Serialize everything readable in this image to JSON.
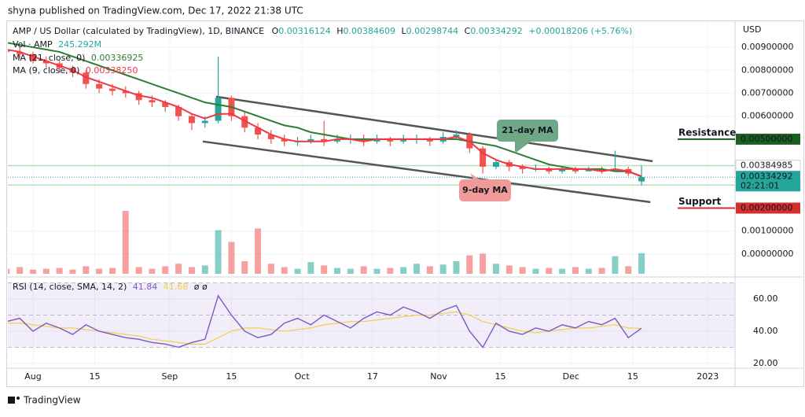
{
  "header": {
    "publisher": "shyna published on TradingView.com, Dec 17, 2022 21:38 UTC",
    "brand": "TradingView"
  },
  "chart_data": {
    "type": "candlestick",
    "title": "AMP / US Dollar (calculated by TradingView), 1D, BINANCE",
    "currency": "USD",
    "ohlc_prefixes": [
      "O",
      "H",
      "L",
      "C"
    ],
    "change_label": "+0.00018206 (+5.76%)",
    "countdown": "02:21:01",
    "x": [
      -6,
      -3,
      0,
      3,
      6,
      9,
      12,
      15,
      18,
      21,
      24,
      27,
      30,
      33,
      36,
      39,
      42,
      45,
      48,
      51,
      54,
      57,
      60,
      63,
      66,
      69,
      72,
      75,
      78,
      81,
      84,
      87,
      90,
      93,
      96,
      99,
      102,
      105,
      108,
      111,
      114,
      117,
      120,
      123,
      126,
      129,
      132,
      135,
      138
    ],
    "xlim": [
      -5.7,
      159.2
    ],
    "xticks": [
      {
        "value": 0,
        "label": "Aug"
      },
      {
        "value": 14,
        "label": "15"
      },
      {
        "value": 31,
        "label": "Sep"
      },
      {
        "value": 45,
        "label": "15"
      },
      {
        "value": 61,
        "label": "Oct"
      },
      {
        "value": 77,
        "label": "17"
      },
      {
        "value": 92,
        "label": "Nov"
      },
      {
        "value": 106,
        "label": "15"
      },
      {
        "value": 122,
        "label": "Dec"
      },
      {
        "value": 136,
        "label": "15"
      },
      {
        "value": 153,
        "label": "2023"
      }
    ],
    "open": [
      0.0089,
      0.0088,
      0.0087,
      0.0084,
      0.0083,
      0.0081,
      0.0079,
      0.0074,
      0.0072,
      0.0071,
      0.007,
      0.0067,
      0.0066,
      0.0064,
      0.006,
      0.0057,
      0.0058,
      0.0068,
      0.006,
      0.0055,
      0.0052,
      0.005,
      0.0049,
      0.0049,
      0.005,
      0.0049,
      0.005,
      0.005,
      0.0049,
      0.005,
      0.0049,
      0.005,
      0.005,
      0.0049,
      0.0051,
      0.0052,
      0.0046,
      0.0038,
      0.004,
      0.0038,
      0.0037,
      0.0037,
      0.0036,
      0.0037,
      0.0036,
      0.0037,
      0.0036,
      0.0037,
      0.00316124
    ],
    "high": [
      0.0091,
      0.009,
      0.0088,
      0.0086,
      0.0084,
      0.0082,
      0.008,
      0.0076,
      0.0074,
      0.0073,
      0.0071,
      0.0069,
      0.0067,
      0.0065,
      0.0061,
      0.006,
      0.0086,
      0.0069,
      0.0062,
      0.0057,
      0.0054,
      0.0052,
      0.0051,
      0.0052,
      0.0058,
      0.0052,
      0.0052,
      0.0052,
      0.0052,
      0.0051,
      0.0052,
      0.0052,
      0.0051,
      0.0053,
      0.0054,
      0.0053,
      0.0047,
      0.0041,
      0.0041,
      0.0039,
      0.0039,
      0.0038,
      0.0038,
      0.0038,
      0.0038,
      0.0038,
      0.0045,
      0.0038,
      0.00384609
    ],
    "low": [
      0.0086,
      0.0085,
      0.0083,
      0.0081,
      0.0079,
      0.0077,
      0.0072,
      0.007,
      0.0069,
      0.0068,
      0.0065,
      0.0064,
      0.0062,
      0.0058,
      0.0054,
      0.0055,
      0.0057,
      0.0058,
      0.0053,
      0.005,
      0.0048,
      0.0047,
      0.0047,
      0.0048,
      0.0047,
      0.0048,
      0.0048,
      0.0047,
      0.0048,
      0.0047,
      0.0048,
      0.0048,
      0.0047,
      0.0048,
      0.005,
      0.0044,
      0.0035,
      0.0037,
      0.0036,
      0.0035,
      0.0036,
      0.0035,
      0.0035,
      0.0035,
      0.0036,
      0.0035,
      0.0036,
      0.0034,
      0.00298744
    ],
    "close": [
      0.0088,
      0.0087,
      0.0084,
      0.0083,
      0.0081,
      0.0079,
      0.0074,
      0.0072,
      0.0071,
      0.007,
      0.0067,
      0.0066,
      0.0064,
      0.006,
      0.0057,
      0.0058,
      0.0068,
      0.006,
      0.0055,
      0.0052,
      0.005,
      0.0049,
      0.0049,
      0.005,
      0.0049,
      0.005,
      0.005,
      0.0049,
      0.005,
      0.0049,
      0.005,
      0.005,
      0.0049,
      0.0051,
      0.0052,
      0.0046,
      0.0038,
      0.004,
      0.0038,
      0.0037,
      0.0037,
      0.0036,
      0.0037,
      0.0036,
      0.0037,
      0.0036,
      0.0037,
      0.0035,
      0.00334292
    ],
    "up_color": "#26a69a",
    "down_color": "#ef5350",
    "ylim": [
      -0.00086,
      0.01003
    ],
    "yticks": [
      {
        "value": 0.009,
        "label": "0.00900000"
      },
      {
        "value": 0.008,
        "label": "0.00800000"
      },
      {
        "value": 0.007,
        "label": "0.00700000"
      },
      {
        "value": 0.006,
        "label": "0.00600000"
      },
      {
        "value": 0.001,
        "label": "0.00100000"
      },
      {
        "value": 0,
        "label": "0.00000000"
      }
    ],
    "moving_averages": [
      {
        "name": "MA (21, close, 0)",
        "color": "#2e7d32",
        "value_label": "0.00336925",
        "values": [
          0.0092,
          0.0091,
          0.009,
          0.0089,
          0.0088,
          0.0086,
          0.0084,
          0.0082,
          0.008,
          0.0078,
          0.0076,
          0.0074,
          0.0072,
          0.007,
          0.0068,
          0.0066,
          0.0065,
          0.0064,
          0.0062,
          0.006,
          0.0058,
          0.0056,
          0.0055,
          0.0053,
          0.0052,
          0.0051,
          0.005,
          0.005,
          0.005,
          0.005,
          0.005,
          0.005,
          0.005,
          0.005,
          0.005,
          0.0049,
          0.0048,
          0.0047,
          0.0045,
          0.0043,
          0.0041,
          0.0039,
          0.0038,
          0.0037,
          0.0037,
          0.0037,
          0.0036,
          0.0036,
          0.00336925
        ]
      },
      {
        "name": "MA (9, close, 0)",
        "color": "#f23645",
        "value_label": "0.00338250",
        "values": [
          0.0089,
          0.0088,
          0.0086,
          0.0084,
          0.0082,
          0.008,
          0.0077,
          0.0075,
          0.0073,
          0.0071,
          0.0069,
          0.0068,
          0.0066,
          0.0064,
          0.0061,
          0.0059,
          0.0061,
          0.0061,
          0.0058,
          0.0055,
          0.0052,
          0.005,
          0.0049,
          0.0049,
          0.0049,
          0.005,
          0.005,
          0.0049,
          0.005,
          0.005,
          0.005,
          0.005,
          0.005,
          0.005,
          0.0051,
          0.0049,
          0.0044,
          0.0041,
          0.0039,
          0.0038,
          0.0037,
          0.0037,
          0.0037,
          0.0037,
          0.0037,
          0.0036,
          0.0037,
          0.0036,
          0.0033825
        ]
      }
    ],
    "volume": {
      "name": "Vol · AMP",
      "value_label": "245.292M",
      "values": [
        60,
        80,
        50,
        60,
        70,
        50,
        90,
        60,
        70,
        750,
        80,
        60,
        90,
        120,
        80,
        100,
        520,
        380,
        150,
        540,
        120,
        80,
        60,
        140,
        100,
        70,
        60,
        90,
        60,
        70,
        80,
        120,
        90,
        110,
        150,
        220,
        240,
        120,
        100,
        80,
        60,
        70,
        60,
        80,
        60,
        70,
        210,
        90,
        245.292
      ]
    },
    "levels": [
      {
        "value": 0.00384985,
        "color": "#b7dfb9"
      },
      {
        "value": 0.00300185,
        "color": "#b7dfb9"
      }
    ],
    "zones": [
      {
        "label": "Resistance",
        "value": 0.005,
        "value_label": "0.00500000",
        "color": "#1b5e20"
      },
      {
        "label": "Support",
        "value": 0.002,
        "value_label": "0.00200000",
        "color": "#d32f2f"
      }
    ],
    "trendlines": [
      {
        "x": [
          41.5,
          140.5
        ],
        "y": [
          0.00685,
          0.00404
        ]
      },
      {
        "x": [
          38.5,
          140
        ],
        "y": [
          0.0049,
          0.00226
        ]
      }
    ],
    "callouts": [
      {
        "label": "21-day MA",
        "color": "#6fa887"
      },
      {
        "label": "9-day MA",
        "color": "#f19a9a"
      }
    ],
    "rsi": {
      "name": "RSI (14, close, SMA, 14, 2)",
      "flags": "ø ø",
      "color": "#7e57c2",
      "ma_color": "#f2cf4a",
      "values": [
        46,
        48,
        40,
        45,
        42,
        38,
        44,
        40,
        38,
        36,
        35,
        33,
        32,
        30,
        33,
        35,
        62,
        50,
        40,
        36,
        38,
        45,
        48,
        44,
        50,
        46,
        42,
        48,
        52,
        50,
        55,
        52,
        48,
        53,
        56,
        40,
        30,
        45,
        40,
        38,
        42,
        40,
        44,
        42,
        46,
        44,
        48,
        36,
        41.84
      ],
      "ma_values": [
        45,
        45,
        44,
        43,
        42,
        42,
        41,
        40,
        39,
        38,
        37,
        35,
        34,
        33,
        32,
        32,
        36,
        40,
        42,
        42,
        41,
        40,
        41,
        42,
        44,
        45,
        46,
        46,
        47,
        48,
        49,
        50,
        50,
        51,
        52,
        50,
        46,
        44,
        42,
        40,
        39,
        40,
        41,
        42,
        42,
        43,
        44,
        42,
        41.68
      ],
      "ylim": [
        18.5,
        72.2
      ],
      "yticks": [
        {
          "value": 60,
          "label": "60.00"
        },
        {
          "value": 40,
          "label": "40.00"
        },
        {
          "value": 20,
          "label": "20.00"
        }
      ],
      "band": [
        30,
        70
      ],
      "midline": 50
    }
  }
}
